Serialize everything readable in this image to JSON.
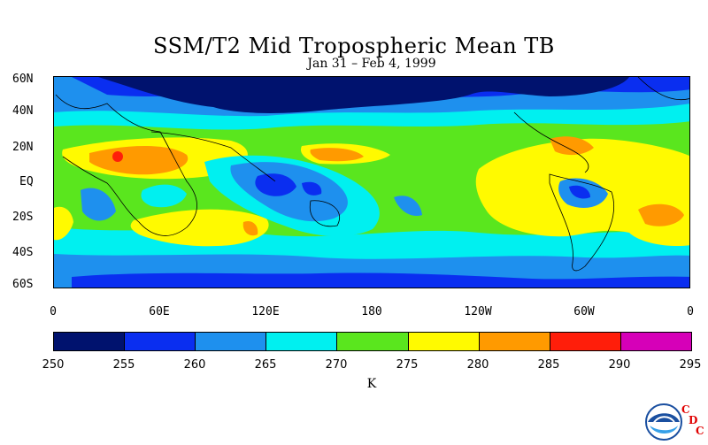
{
  "title": "SSM/T2 Mid Tropospheric Mean TB",
  "subtitle": "Jan 31 – Feb 4, 1999",
  "latitude_labels": [
    "60N",
    "40N",
    "20N",
    "EQ",
    "20S",
    "40S",
    "60S"
  ],
  "longitude_labels": [
    "0",
    "60E",
    "120E",
    "180",
    "120W",
    "60W",
    "0"
  ],
  "colorbar": {
    "ticks": [
      "250",
      "255",
      "260",
      "265",
      "270",
      "275",
      "280",
      "285",
      "290",
      "295"
    ],
    "colors": [
      "#00126e",
      "#0a2ef0",
      "#1e90ee",
      "#00f0f0",
      "#5ae61e",
      "#fffa00",
      "#ff9a00",
      "#ff1e0a",
      "#d600b8"
    ],
    "unit": "K"
  },
  "logo": {
    "text_c1": "C",
    "text_d": "D",
    "text_c2": "C",
    "colors": {
      "noaa_blue": "#1a4fa0",
      "cdc_red": "#e00000"
    }
  }
}
